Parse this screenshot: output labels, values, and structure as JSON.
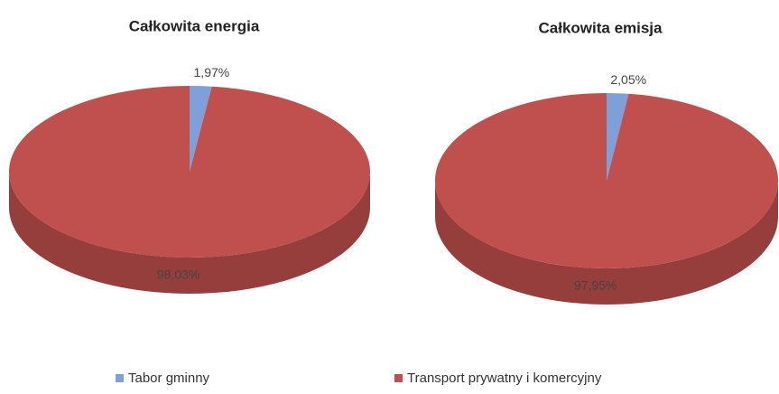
{
  "chart_data": [
    {
      "type": "pie",
      "title": "Całkowita energia",
      "categories": [
        "Tabor gminny",
        "Transport prywatny i komercyjny"
      ],
      "values": [
        1.97,
        98.03
      ],
      "value_labels": [
        "1,97%",
        "98,03%"
      ],
      "colors": [
        "#7f9fd8",
        "#c0504d"
      ]
    },
    {
      "type": "pie",
      "title": "Całkowita emisja",
      "categories": [
        "Tabor gminny",
        "Transport prywatny i komercyjny"
      ],
      "values": [
        2.05,
        97.95
      ],
      "value_labels": [
        "2,05%",
        "97,95%"
      ],
      "colors": [
        "#7f9fd8",
        "#c0504d"
      ]
    }
  ]
}
